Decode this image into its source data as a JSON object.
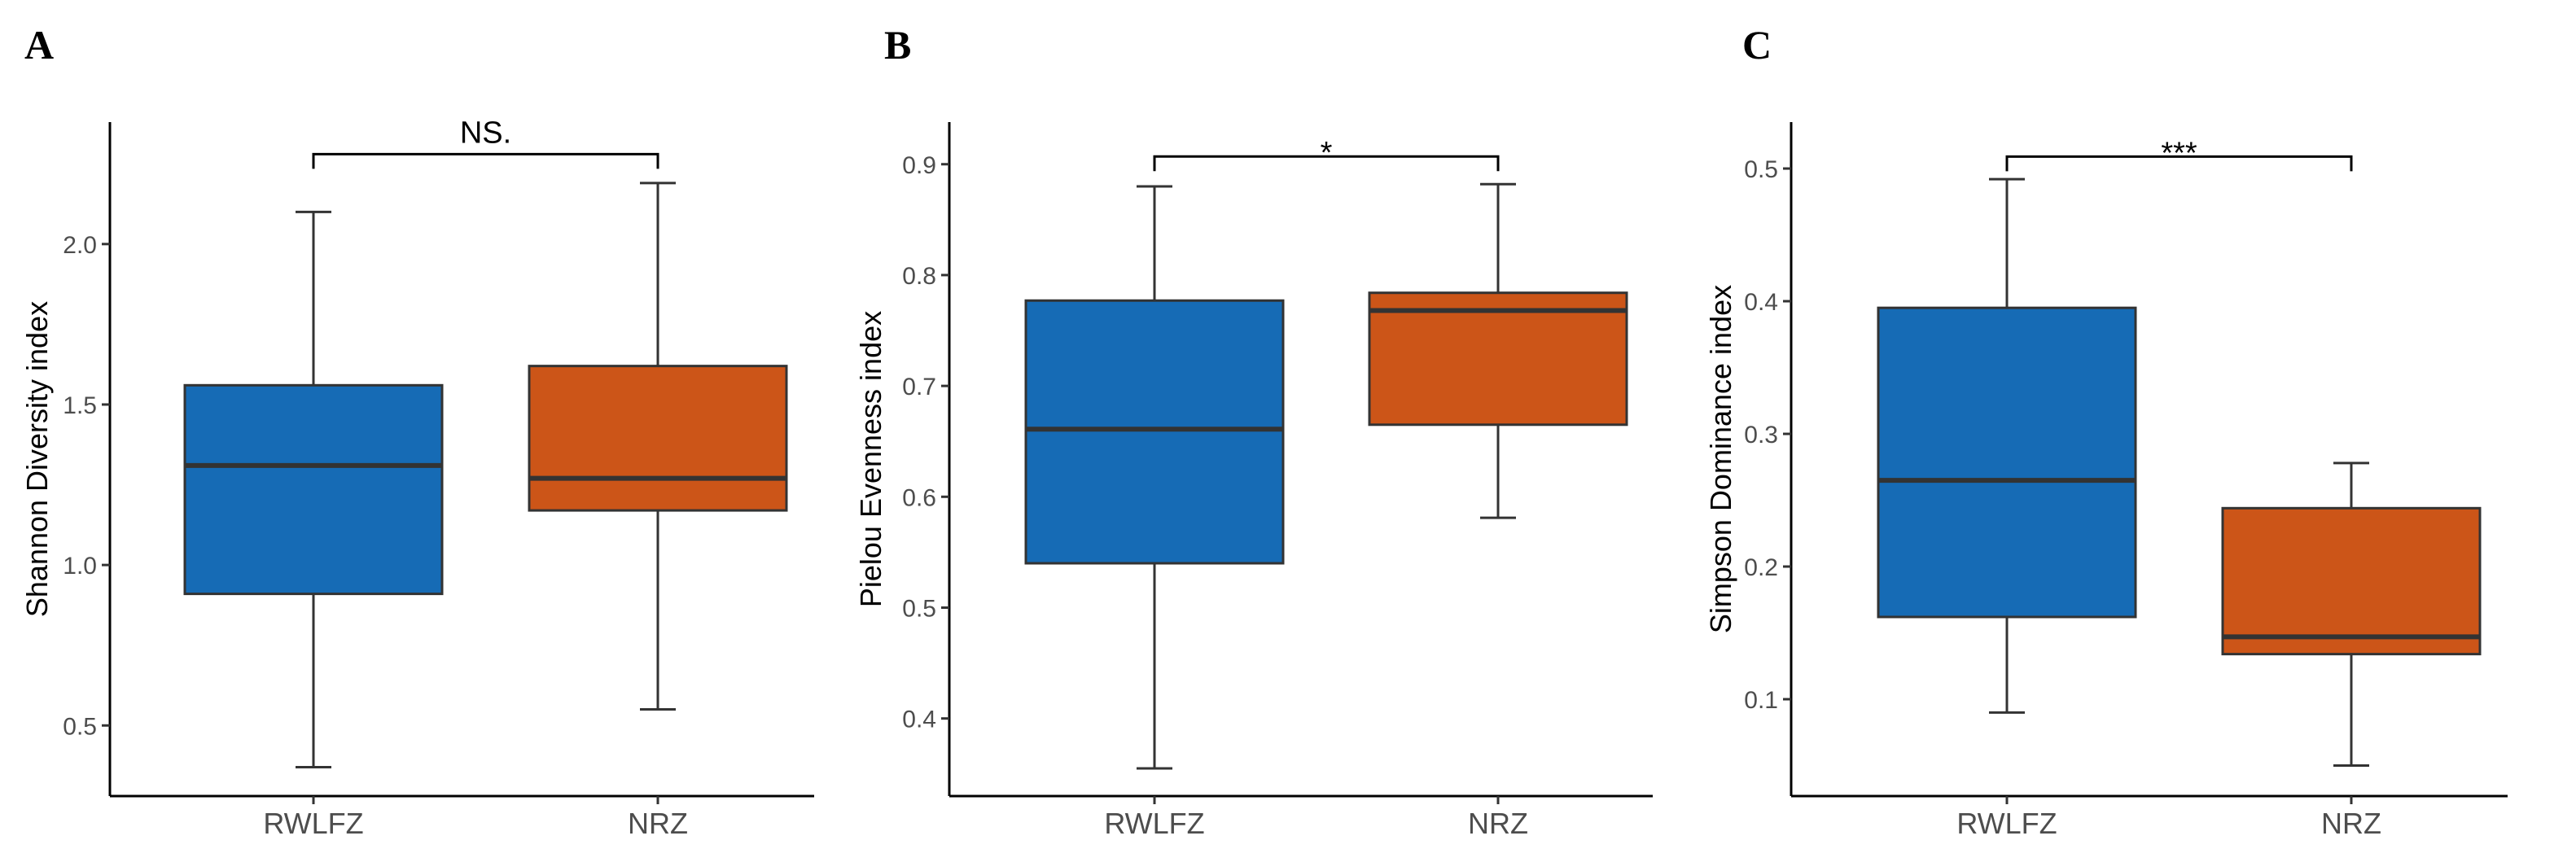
{
  "colors": {
    "RWLFZ": "#166BB5",
    "NRZ": "#CC5518"
  },
  "chart_data": [
    {
      "panel": "A",
      "type": "box",
      "ylabel": "Shannon Diversity index",
      "categories": [
        "RWLFZ",
        "NRZ"
      ],
      "ylim": [
        0.28,
        2.38
      ],
      "yticks": [
        0.5,
        1.0,
        1.5,
        2.0
      ],
      "ytick_labels": [
        "0.5",
        "1.0",
        "1.5",
        "2.0"
      ],
      "boxes": [
        {
          "group": "RWLFZ",
          "min": 0.37,
          "q1": 0.91,
          "median": 1.31,
          "q3": 1.56,
          "max": 2.1
        },
        {
          "group": "NRZ",
          "min": 0.55,
          "q1": 1.17,
          "median": 1.27,
          "q3": 1.62,
          "max": 2.19
        }
      ],
      "significance": "NS.",
      "bracket_y": 2.28
    },
    {
      "panel": "B",
      "type": "box",
      "ylabel": "Pielou Evenness index",
      "categories": [
        "RWLFZ",
        "NRZ"
      ],
      "ylim": [
        0.33,
        0.938
      ],
      "yticks": [
        0.4,
        0.5,
        0.6,
        0.7,
        0.8,
        0.9
      ],
      "ytick_labels": [
        "0.4",
        "0.5",
        "0.6",
        "0.7",
        "0.8",
        "0.9"
      ],
      "boxes": [
        {
          "group": "RWLFZ",
          "min": 0.355,
          "q1": 0.54,
          "median": 0.661,
          "q3": 0.777,
          "max": 0.88
        },
        {
          "group": "NRZ",
          "min": 0.581,
          "q1": 0.665,
          "median": 0.768,
          "q3": 0.784,
          "max": 0.882
        }
      ],
      "significance": "*",
      "bracket_y": 0.907
    },
    {
      "panel": "C",
      "type": "box",
      "ylabel": "Simpson Dominance index",
      "categories": [
        "RWLFZ",
        "NRZ"
      ],
      "ylim": [
        0.027,
        0.535
      ],
      "yticks": [
        0.1,
        0.2,
        0.3,
        0.4,
        0.5
      ],
      "ytick_labels": [
        "0.1",
        "0.2",
        "0.3",
        "0.4",
        "0.5"
      ],
      "boxes": [
        {
          "group": "RWLFZ",
          "min": 0.09,
          "q1": 0.162,
          "median": 0.265,
          "q3": 0.395,
          "max": 0.492
        },
        {
          "group": "NRZ",
          "min": 0.05,
          "q1": 0.134,
          "median": 0.147,
          "q3": 0.244,
          "max": 0.278
        }
      ],
      "significance": "***",
      "bracket_y": 0.509
    }
  ]
}
